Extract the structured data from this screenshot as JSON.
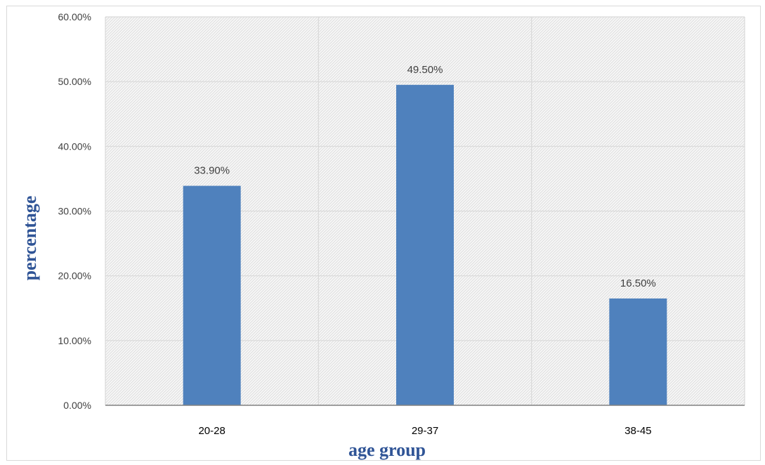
{
  "chart_data": {
    "type": "bar",
    "title": "",
    "xlabel": "age group",
    "ylabel": "percentage",
    "categories": [
      "20-28",
      "29-37",
      "38-45"
    ],
    "values": [
      33.9,
      49.5,
      16.5
    ],
    "value_labels": [
      "33.90%",
      "49.50%",
      "16.50%"
    ],
    "ylim": [
      0,
      60
    ],
    "yticks": [
      0,
      10,
      20,
      30,
      40,
      50,
      60
    ],
    "ytick_labels": [
      "0.00%",
      "10.00%",
      "20.00%",
      "30.00%",
      "40.00%",
      "50.00%",
      "60.00%"
    ],
    "grid": true,
    "legend": "none",
    "bar_color": "#4f81bd",
    "title_color": "#2f5496"
  }
}
